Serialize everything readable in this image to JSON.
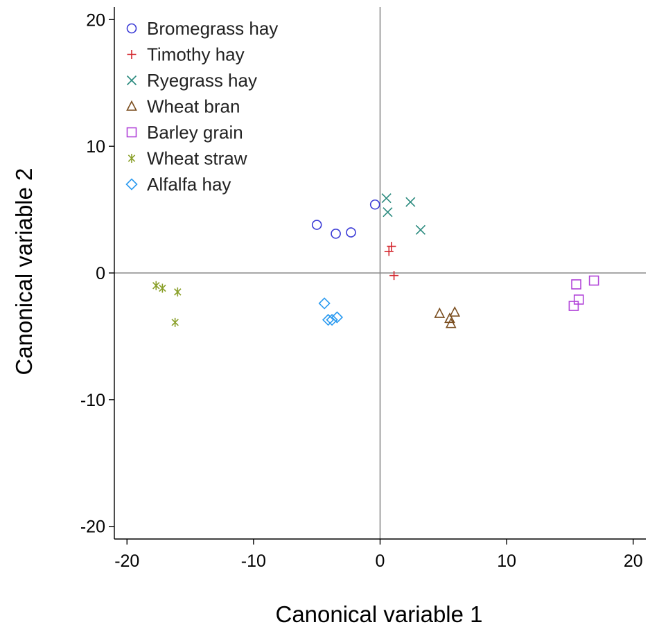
{
  "chart_data": {
    "type": "scatter",
    "xlabel": "Canonical variable 1",
    "ylabel": "Canonical variable 2",
    "xlim": [
      -21,
      21
    ],
    "ylim": [
      -21,
      21
    ],
    "xticks": [
      -20,
      -10,
      0,
      10,
      20
    ],
    "yticks": [
      20,
      10,
      0,
      -10,
      -20
    ],
    "reference_lines": {
      "x": 0,
      "y": 0
    },
    "grid": false,
    "legend_position": "top-left",
    "series": [
      {
        "name": "Bromegrass hay",
        "marker": "circle",
        "color": "#3a3ad6",
        "points": [
          [
            -0.4,
            5.4
          ],
          [
            -5.0,
            3.8
          ],
          [
            -3.5,
            3.1
          ],
          [
            -2.3,
            3.2
          ]
        ]
      },
      {
        "name": "Timothy hay",
        "marker": "plus",
        "color": "#d4272e",
        "points": [
          [
            0.9,
            2.1
          ],
          [
            0.7,
            1.7
          ],
          [
            1.1,
            -0.2
          ]
        ]
      },
      {
        "name": "Ryegrass hay",
        "marker": "x",
        "color": "#2a8a7e",
        "points": [
          [
            0.5,
            5.9
          ],
          [
            0.6,
            4.8
          ],
          [
            2.4,
            5.6
          ],
          [
            3.2,
            3.4
          ]
        ]
      },
      {
        "name": "Wheat bran",
        "marker": "triangle",
        "color": "#7a4d1e",
        "points": [
          [
            4.7,
            -3.2
          ],
          [
            5.5,
            -3.6
          ],
          [
            5.6,
            -4.0
          ],
          [
            5.9,
            -3.1
          ]
        ]
      },
      {
        "name": "Barley grain",
        "marker": "square",
        "color": "#b040d8",
        "points": [
          [
            15.5,
            -0.9
          ],
          [
            16.9,
            -0.6
          ],
          [
            15.7,
            -2.1
          ],
          [
            15.3,
            -2.6
          ]
        ]
      },
      {
        "name": "Wheat straw",
        "marker": "asterisk",
        "color": "#8aa02a",
        "points": [
          [
            -17.7,
            -1.0
          ],
          [
            -17.2,
            -1.2
          ],
          [
            -16.0,
            -1.5
          ],
          [
            -16.2,
            -3.9
          ]
        ]
      },
      {
        "name": "Alfalfa hay",
        "marker": "diamond",
        "color": "#2a9af0",
        "points": [
          [
            -4.4,
            -2.4
          ],
          [
            -4.1,
            -3.7
          ],
          [
            -3.8,
            -3.7
          ],
          [
            -3.4,
            -3.5
          ]
        ]
      }
    ]
  }
}
